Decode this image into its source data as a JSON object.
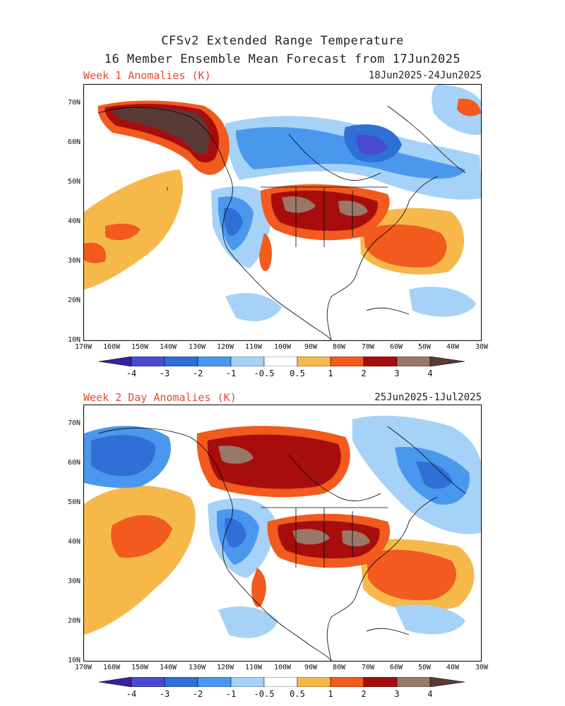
{
  "header": {
    "line1": "CFSv2 Extended Range Temperature",
    "line2": "16 Member Ensemble Mean Forecast from 17Jun2025"
  },
  "panels": [
    {
      "title": "Week 1 Anomalies (K)",
      "dates": "18Jun2025-24Jun2025"
    },
    {
      "title": "Week 2 Day Anomalies (K)",
      "dates": "25Jun2025-1Jul2025"
    }
  ],
  "axes": {
    "lat_labels": [
      "70N",
      "60N",
      "50N",
      "40N",
      "30N",
      "20N",
      "10N"
    ],
    "lon_labels": [
      "170W",
      "160W",
      "150W",
      "140W",
      "130W",
      "120W",
      "110W",
      "100W",
      "90W",
      "80W",
      "70W",
      "60W",
      "50W",
      "40W",
      "30W"
    ]
  },
  "colorbar": {
    "labels": [
      "-4",
      "-3",
      "-2",
      "-1",
      "-0.5",
      "0.5",
      "1",
      "2",
      "3",
      "4"
    ],
    "colors": [
      "#3a1f9e",
      "#4a4ad0",
      "#2f6fd6",
      "#4a98ee",
      "#a6d2f7",
      "#ffffff",
      "#f7b84a",
      "#f25a1e",
      "#a80d0d",
      "#9a7868",
      "#5a3a34"
    ]
  }
}
